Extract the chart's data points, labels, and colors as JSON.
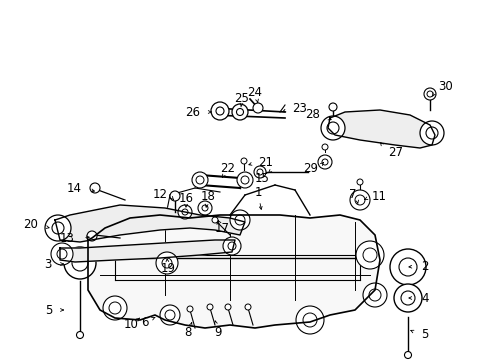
{
  "bg_color": "#ffffff",
  "figsize": [
    4.89,
    3.6
  ],
  "dpi": 100,
  "image_b64": ""
}
